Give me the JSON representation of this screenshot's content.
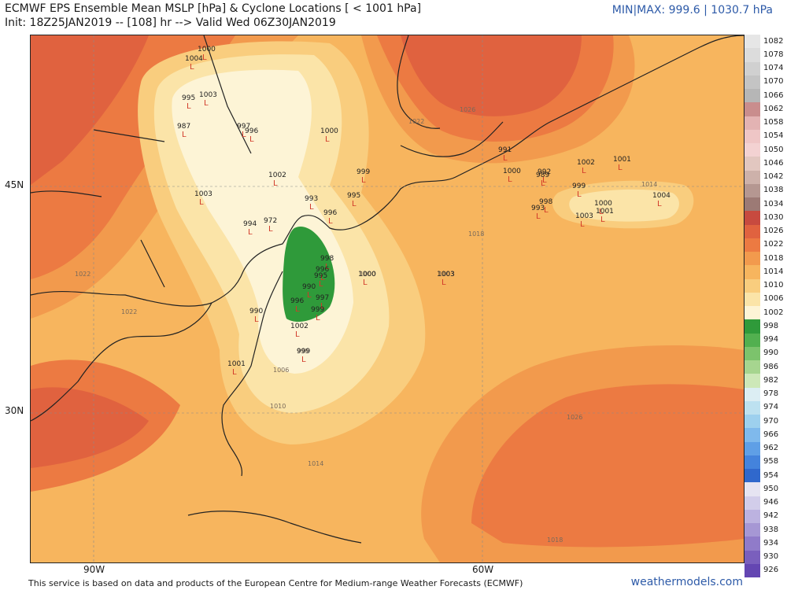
{
  "header": {
    "title": "ECMWF EPS Ensemble Mean MSLP [hPa] & Cyclone Locations [ < 1001 hPa]",
    "subtitle": "Init: 18Z25JAN2019 -- [108] hr --> Valid Wed 06Z30JAN2019",
    "minmax": "MIN|MAX: 999.6 | 1030.7 hPa"
  },
  "axes": {
    "lat_labels": [
      "45N",
      "30N"
    ],
    "lon_labels": [
      "90W",
      "60W"
    ]
  },
  "isobar_labels": [
    "1026",
    "1022",
    "1018",
    "1014",
    "1010",
    "1006",
    "1003",
    "1000",
    "999",
    "1022",
    "1022",
    "1018",
    "1014",
    "1026"
  ],
  "cyclone_lows": [
    {
      "v": "1004"
    },
    {
      "v": "1000"
    },
    {
      "v": "1003"
    },
    {
      "v": "995"
    },
    {
      "v": "987"
    },
    {
      "v": "997"
    },
    {
      "v": "996"
    },
    {
      "v": "1000"
    },
    {
      "v": "1002"
    },
    {
      "v": "1003"
    },
    {
      "v": "999"
    },
    {
      "v": "993"
    },
    {
      "v": "995"
    },
    {
      "v": "996"
    },
    {
      "v": "994"
    },
    {
      "v": "972"
    },
    {
      "v": "998"
    },
    {
      "v": "996"
    },
    {
      "v": "995"
    },
    {
      "v": "990"
    },
    {
      "v": "996"
    },
    {
      "v": "997"
    },
    {
      "v": "999"
    },
    {
      "v": "1000"
    },
    {
      "v": "1003"
    },
    {
      "v": "1002"
    },
    {
      "v": "999"
    },
    {
      "v": "1001"
    },
    {
      "v": "990"
    },
    {
      "v": "991"
    },
    {
      "v": "1000"
    },
    {
      "v": "992"
    },
    {
      "v": "989"
    },
    {
      "v": "999"
    },
    {
      "v": "998"
    },
    {
      "v": "993"
    },
    {
      "v": "1002"
    },
    {
      "v": "1001"
    },
    {
      "v": "1000"
    },
    {
      "v": "1004"
    },
    {
      "v": "1003"
    },
    {
      "v": "1001"
    }
  ],
  "legend": [
    {
      "label": "1082",
      "color": "#e6e6e6"
    },
    {
      "label": "1078",
      "color": "#dcdcdc"
    },
    {
      "label": "1074",
      "color": "#d0d0d0"
    },
    {
      "label": "1070",
      "color": "#c4c4c4"
    },
    {
      "label": "1066",
      "color": "#b6b6b6"
    },
    {
      "label": "1062",
      "color": "#c98d8d"
    },
    {
      "label": "1058",
      "color": "#e3b3b3"
    },
    {
      "label": "1054",
      "color": "#efc6c6"
    },
    {
      "label": "1050",
      "color": "#f3d2d2"
    },
    {
      "label": "1046",
      "color": "#e2c7c0"
    },
    {
      "label": "1042",
      "color": "#cdb1aa"
    },
    {
      "label": "1038",
      "color": "#b59791"
    },
    {
      "label": "1034",
      "color": "#9c7a75"
    },
    {
      "label": "1030",
      "color": "#c74a3f"
    },
    {
      "label": "1026",
      "color": "#e0623f"
    },
    {
      "label": "1022",
      "color": "#ec7a42"
    },
    {
      "label": "1018",
      "color": "#f29a4d"
    },
    {
      "label": "1014",
      "color": "#f7b55e"
    },
    {
      "label": "1010",
      "color": "#f9cd7e"
    },
    {
      "label": "1006",
      "color": "#fbe4a8"
    },
    {
      "label": "1002",
      "color": "#fdf4d6"
    },
    {
      "label": "998",
      "color": "#2f9a3a"
    },
    {
      "label": "994",
      "color": "#52b04f"
    },
    {
      "label": "990",
      "color": "#7cc36c"
    },
    {
      "label": "986",
      "color": "#a6d58f"
    },
    {
      "label": "982",
      "color": "#cde8b8"
    },
    {
      "label": "978",
      "color": "#dceef3"
    },
    {
      "label": "974",
      "color": "#bde1f0"
    },
    {
      "label": "970",
      "color": "#9dd0ee"
    },
    {
      "label": "966",
      "color": "#7fb9ec"
    },
    {
      "label": "962",
      "color": "#5f9fe6"
    },
    {
      "label": "958",
      "color": "#4483dc"
    },
    {
      "label": "954",
      "color": "#3068cc"
    },
    {
      "label": "950",
      "color": "#e6e4f2"
    },
    {
      "label": "946",
      "color": "#d2cdea"
    },
    {
      "label": "942",
      "color": "#bcb2e0"
    },
    {
      "label": "938",
      "color": "#a697d4"
    },
    {
      "label": "934",
      "color": "#907bc9"
    },
    {
      "label": "930",
      "color": "#7a5fbd"
    },
    {
      "label": "926",
      "color": "#6446b2"
    }
  ],
  "footer": {
    "disclaimer": "This service is based on data and products of the European Centre for Medium-range Weather Forecasts (ECMWF)",
    "brand": "weathermodels.com"
  }
}
